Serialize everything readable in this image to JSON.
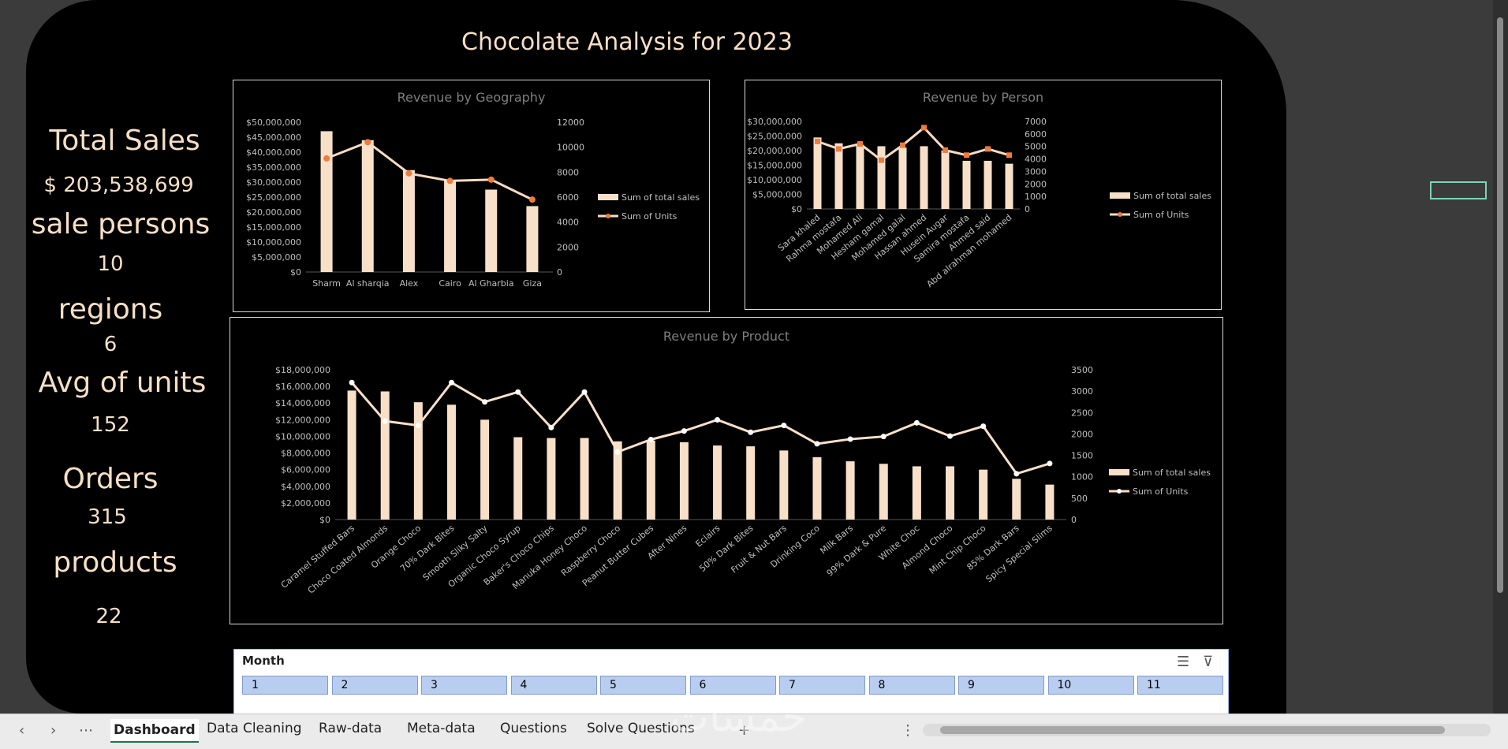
{
  "dashboard": {
    "title": "Chocolate Analysis for 2023",
    "kpis": [
      {
        "label": "Total Sales",
        "value": "$ 203,538,699"
      },
      {
        "label": "sale persons",
        "value": "10"
      },
      {
        "label": "regions",
        "value": "6"
      },
      {
        "label": "Avg of units",
        "value": "152"
      },
      {
        "label": "Orders",
        "value": "315"
      },
      {
        "label": "products",
        "value": "22"
      }
    ]
  },
  "colors": {
    "bar": "#f8e0c8",
    "line_geo": "#f7dcc4",
    "marker_geo": "#ef7b3d",
    "line_product": "#f8e0c8",
    "text_title": "#f6dfc6",
    "axis_text": "#bfbfbf"
  },
  "chart_data": [
    {
      "type": "bar",
      "title": "Revenue by Geography",
      "categories": [
        "Sharm",
        "Al sharqia",
        "Alex",
        "Cairo",
        "Al Gharbia",
        "Giza"
      ],
      "series": [
        {
          "name": "Sum of total sales",
          "type": "bar",
          "axis": "left",
          "values": [
            47000000,
            44000000,
            34000000,
            30500000,
            27500000,
            22000000
          ]
        },
        {
          "name": "Sum of Units",
          "type": "line",
          "axis": "right",
          "values": [
            9100,
            10400,
            7900,
            7300,
            7400,
            5800
          ]
        }
      ],
      "left_ticks": [
        "$0",
        "$5,000,000",
        "$10,000,000",
        "$15,000,000",
        "$20,000,000",
        "$25,000,000",
        "$30,000,000",
        "$35,000,000",
        "$40,000,000",
        "$45,000,000",
        "$50,000,000"
      ],
      "right_ticks": [
        "0",
        "2000",
        "4000",
        "6000",
        "8000",
        "10000",
        "12000"
      ],
      "ylim_left": [
        0,
        50000000
      ],
      "ylim_right": [
        0,
        12000
      ],
      "legend_position": "right"
    },
    {
      "type": "bar",
      "title": "Revenue by Person",
      "categories": [
        "Sara khaled",
        "Rahma mostafa",
        "Mohamed Ali",
        "Hesham gamal",
        "Mohamed galal",
        "Hassan ahmed",
        "Husein Augar",
        "Samira mostafa",
        "Ahmed said",
        "Abd alrahman mohamed"
      ],
      "series": [
        {
          "name": "Sum of total sales",
          "type": "bar",
          "axis": "left",
          "values": [
            24500000,
            22500000,
            22000000,
            21500000,
            21000000,
            21500000,
            20000000,
            16500000,
            16500000,
            15500000
          ]
        },
        {
          "name": "Sum of Units",
          "type": "line",
          "axis": "right",
          "values": [
            5400,
            4800,
            5200,
            3900,
            5100,
            6500,
            4700,
            4300,
            4800,
            4300
          ]
        }
      ],
      "left_ticks": [
        "$0",
        "$5,000,000",
        "$10,000,000",
        "$15,000,000",
        "$20,000,000",
        "$25,000,000",
        "$30,000,000"
      ],
      "right_ticks": [
        "0",
        "1000",
        "2000",
        "3000",
        "4000",
        "5000",
        "6000",
        "7000"
      ],
      "ylim_left": [
        0,
        30000000
      ],
      "ylim_right": [
        0,
        7000
      ],
      "legend_position": "right"
    },
    {
      "type": "bar",
      "title": "Revenue by Product",
      "categories": [
        "Caramel Stuffed Bars",
        "Choco Coated Almonds",
        "Orange Choco",
        "70% Dark Bites",
        "Smooth Sliky Salty",
        "Organic Choco Syrup",
        "Baker's Choco Chips",
        "Manuka Honey Choco",
        "Raspberry Choco",
        "Peanut Butter Cubes",
        "After Nines",
        "Eclairs",
        "50% Dark Bites",
        "Fruit & Nut Bars",
        "Drinking Coco",
        "Milk Bars",
        "99% Dark & Pure",
        "White Choc",
        "Almond Choco",
        "Mint Chip Choco",
        "85% Dark Bars",
        "Spicy Special Slims"
      ],
      "series": [
        {
          "name": "Sum of total sales",
          "type": "bar",
          "axis": "left",
          "values": [
            15500000,
            15400000,
            14100000,
            13800000,
            12000000,
            9900000,
            9800000,
            9800000,
            9400000,
            9500000,
            9300000,
            8900000,
            8800000,
            8300000,
            7500000,
            7000000,
            6700000,
            6400000,
            6400000,
            6000000,
            4900000,
            4200000
          ]
        },
        {
          "name": "Sum of Units",
          "type": "line",
          "axis": "right",
          "values": [
            3200,
            2300,
            2200,
            3200,
            2750,
            2980,
            2150,
            2980,
            1580,
            1870,
            2070,
            2330,
            2040,
            2200,
            1770,
            1880,
            1940,
            2260,
            1950,
            2180,
            1070,
            1310
          ]
        }
      ],
      "left_ticks": [
        "$0",
        "$2,000,000",
        "$4,000,000",
        "$6,000,000",
        "$8,000,000",
        "$10,000,000",
        "$12,000,000",
        "$14,000,000",
        "$16,000,000",
        "$18,000,000"
      ],
      "right_ticks": [
        "0",
        "500",
        "1000",
        "1500",
        "2000",
        "2500",
        "3000",
        "3500"
      ],
      "ylim_left": [
        0,
        18000000
      ],
      "ylim_right": [
        0,
        3500
      ],
      "legend_position": "right"
    }
  ],
  "slicer": {
    "title": "Month",
    "items": [
      "1",
      "2",
      "3",
      "4",
      "5",
      "6",
      "7",
      "8",
      "9",
      "10",
      "11"
    ]
  },
  "tabs": [
    "Dashboard",
    "Data Cleaning",
    "Raw-data",
    "Meta-data",
    "Questions",
    "Solve Questions"
  ],
  "watermark": "خمسات"
}
